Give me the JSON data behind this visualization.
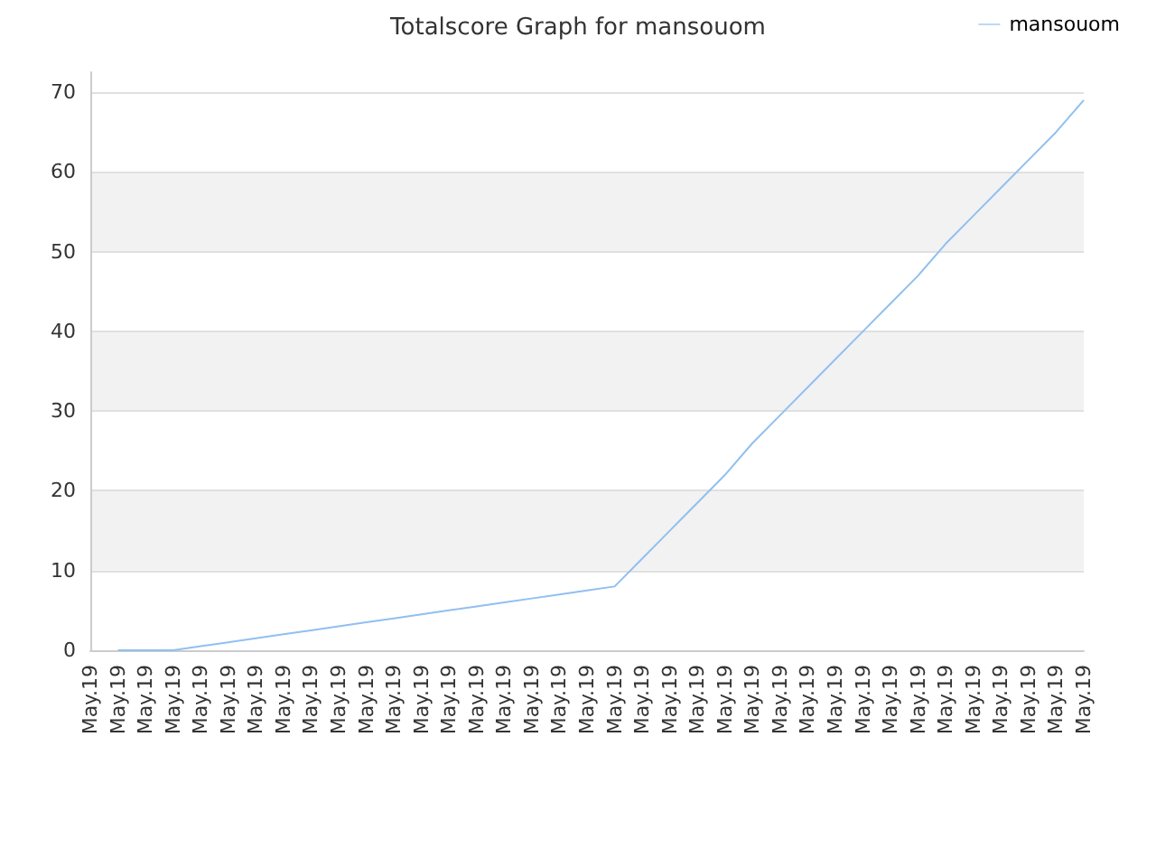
{
  "chart_data": {
    "type": "line",
    "title": "Totalscore Graph for mansouom",
    "categories": [
      "May.19",
      "May.19",
      "May.19",
      "May.19",
      "May.19",
      "May.19",
      "May.19",
      "May.19",
      "May.19",
      "May.19",
      "May.19",
      "May.19",
      "May.19",
      "May.19",
      "May.19",
      "May.19",
      "May.19",
      "May.19",
      "May.19",
      "May.19",
      "May.19",
      "May.19",
      "May.19",
      "May.19",
      "May.19",
      "May.19",
      "May.19",
      "May.19",
      "May.19",
      "May.19",
      "May.19",
      "May.19",
      "May.19",
      "May.19",
      "May.19",
      "May.19",
      "May.19"
    ],
    "series": [
      {
        "name": "mansouom",
        "color": "#90c0f0",
        "values": [
          null,
          0,
          0,
          0,
          0.5,
          1,
          1.5,
          2,
          2.5,
          3,
          3.5,
          4,
          4.5,
          5,
          5.5,
          6,
          6.5,
          7,
          7.5,
          8,
          11.5,
          15,
          18.5,
          22,
          26,
          29.5,
          33,
          36.5,
          40,
          43.5,
          47,
          51,
          54.5,
          58,
          61.5,
          65,
          69
        ]
      }
    ],
    "ylim": [
      0,
      72.5
    ],
    "yticks": [
      0,
      10,
      20,
      30,
      40,
      50,
      60,
      70
    ],
    "grid": "y",
    "legend": "top right",
    "marker": "none",
    "line_style": "solid"
  }
}
